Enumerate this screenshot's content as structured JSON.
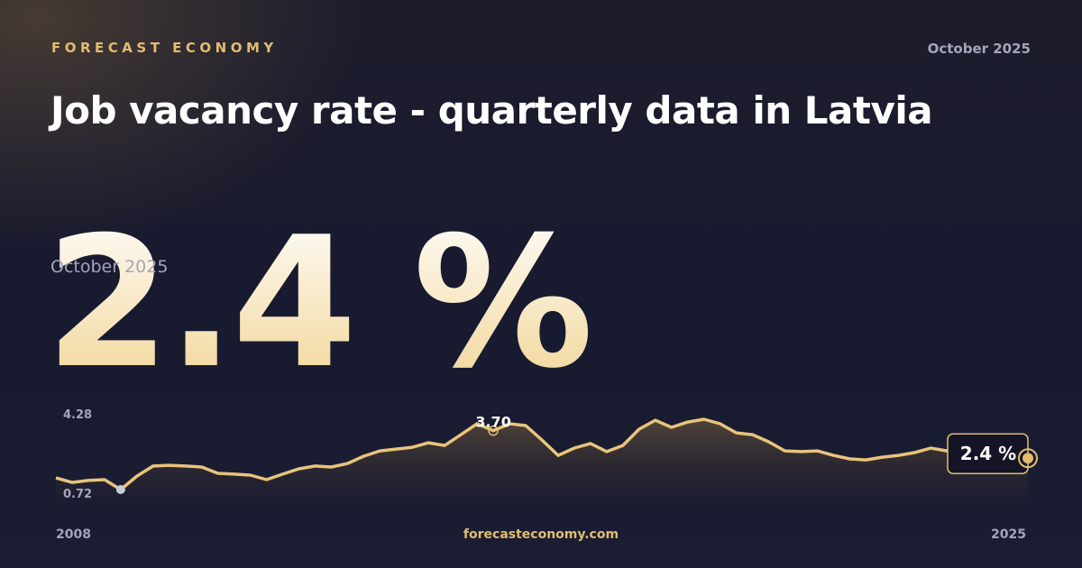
{
  "brand": "FORECAST ECONOMY",
  "date": "October 2025",
  "title": "Job vacancy rate - quarterly data in Latvia",
  "headline": {
    "period": "October 2025",
    "value": "2.4 %"
  },
  "footer": "forecasteconomy.com",
  "chart_data": {
    "type": "line",
    "series": [
      {
        "color": "#e8c47a",
        "values": [
          1.31,
          1.08,
          1.18,
          1.22,
          0.72,
          1.4,
          1.91,
          1.95,
          1.91,
          1.86,
          1.54,
          1.5,
          1.45,
          1.22,
          1.5,
          1.77,
          1.91,
          1.86,
          2.04,
          2.41,
          2.68,
          2.77,
          2.86,
          3.09,
          2.95,
          3.5,
          4.05,
          3.7,
          4.05,
          3.96,
          3.23,
          2.45,
          2.82,
          3.05,
          2.64,
          2.95,
          3.78,
          4.23,
          3.87,
          4.14,
          4.28,
          4.05,
          3.59,
          3.5,
          3.14,
          2.68,
          2.64,
          2.68,
          2.45,
          2.27,
          2.22,
          2.36,
          2.45,
          2.59,
          2.82,
          2.68,
          2.41,
          2.45,
          2.41,
          2.41,
          2.4
        ],
        "value_labels": [
          null,
          null,
          null,
          null,
          null,
          null,
          null,
          null,
          null,
          null,
          null,
          null,
          null,
          null,
          null,
          null,
          null,
          null,
          null,
          null,
          null,
          null,
          null,
          null,
          null,
          null,
          null,
          "3.70",
          null,
          null,
          null,
          null,
          null,
          null,
          null,
          null,
          null,
          null,
          null,
          null,
          null,
          null,
          null,
          null,
          null,
          null,
          null,
          null,
          null,
          null,
          null,
          null,
          null,
          null,
          null,
          null,
          null,
          null,
          null,
          null,
          "2.4 %"
        ]
      }
    ],
    "ylim": [
      0.72,
      4.28
    ],
    "yticks": [
      0.72,
      4.28
    ],
    "xticks": [
      2008,
      2025
    ]
  }
}
